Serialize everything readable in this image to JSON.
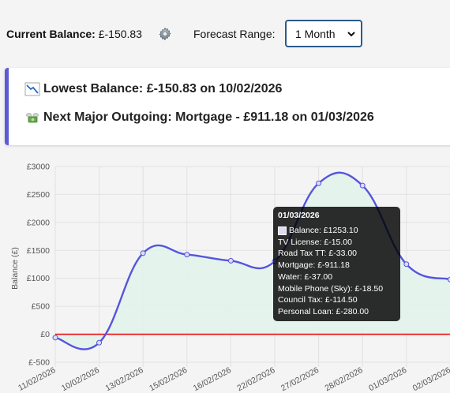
{
  "header": {
    "balance_label": "Current Balance:",
    "balance_value": "£-150.83",
    "settings_icon": "gear-icon",
    "range_label": "Forecast Range:",
    "range_selected": "1 Month"
  },
  "summary": {
    "lowest_icon": "chart-decreasing-icon",
    "lowest_text": "Lowest Balance: £-150.83 on 10/02/2026",
    "outgoing_icon": "money-with-wings-icon",
    "outgoing_text": "Next Major Outgoing: Mortgage - £911.18 on 01/03/2026"
  },
  "chart_data": {
    "type": "line",
    "ylabel": "Balance (£)",
    "ylim": [
      -500,
      3000
    ],
    "yticks": [
      "£3000",
      "£2500",
      "£2000",
      "£1500",
      "£1000",
      "£500",
      "£0",
      "£-500"
    ],
    "ytick_values": [
      3000,
      2500,
      2000,
      1500,
      1000,
      500,
      0,
      -500
    ],
    "categories": [
      "11/02/2026",
      "10/02/2026",
      "13/02/2026",
      "15/02/2026",
      "16/02/2026",
      "22/02/2026",
      "27/02/2026",
      "28/02/2026",
      "01/03/2026",
      "02/03/2026"
    ],
    "series": [
      {
        "values": [
          -60,
          -150.83,
          1450,
          1425,
          1315,
          1305,
          2700,
          2660,
          1253.1,
          980
        ]
      }
    ],
    "zero_line": 0,
    "line_color": "#5555dd",
    "fill_color": "#e3f3ec",
    "zero_line_color": "#ee1111",
    "grid": true
  },
  "tooltip": {
    "title": "01/03/2026",
    "lines": [
      "Balance: £1253.10",
      "TV License: £-15.00",
      "Road Tax TT: £-33.00",
      "Mortgage: £-911.18",
      "Water: £-37.00",
      "Mobile Phone (Sky): £-18.50",
      "Council Tax: £-114.50",
      "Personal Loan: £-280.00"
    ]
  }
}
